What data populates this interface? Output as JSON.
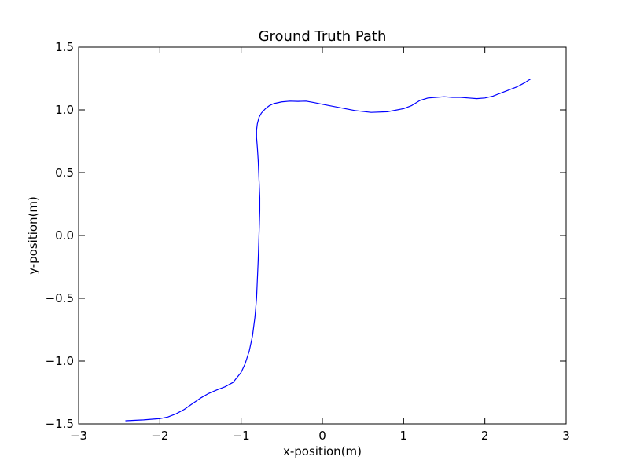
{
  "chart_data": {
    "type": "line",
    "title": "Ground Truth Path",
    "xlabel": "x-position(m)",
    "ylabel": "y-position(m)",
    "xlim": [
      -3,
      3
    ],
    "ylim": [
      -1.5,
      1.5
    ],
    "xticks": [
      -3,
      -2,
      -1,
      0,
      1,
      2,
      3
    ],
    "xtick_labels": [
      "−3",
      "−2",
      "−1",
      "0",
      "1",
      "2",
      "3"
    ],
    "yticks": [
      -1.5,
      -1.0,
      -0.5,
      0.0,
      0.5,
      1.0,
      1.5
    ],
    "ytick_labels": [
      "−1.5",
      "−1.0",
      "−0.5",
      "0.0",
      "0.5",
      "1.0",
      "1.5"
    ],
    "grid": false,
    "line_color": "#0000ff",
    "series": [
      {
        "x": [
          -2.42,
          -2.2,
          -2.0,
          -1.9,
          -1.8,
          -1.7,
          -1.6,
          -1.5,
          -1.4,
          -1.3,
          -1.2,
          -1.1,
          -1.0,
          -0.95,
          -0.9,
          -0.86,
          -0.83,
          -0.81,
          -0.8,
          -0.79,
          -0.785,
          -0.78,
          -0.775,
          -0.77,
          -0.77,
          -0.78,
          -0.79,
          -0.8,
          -0.81,
          -0.81,
          -0.8,
          -0.78,
          -0.75,
          -0.7,
          -0.65,
          -0.6,
          -0.5,
          -0.4,
          -0.3,
          -0.2,
          -0.1,
          0.0,
          0.2,
          0.4,
          0.6,
          0.8,
          1.0,
          1.1,
          1.2,
          1.3,
          1.4,
          1.5,
          1.6,
          1.7,
          1.8,
          1.9,
          2.0,
          2.1,
          2.2,
          2.3,
          2.4,
          2.5,
          2.56
        ],
        "y": [
          -1.475,
          -1.468,
          -1.458,
          -1.445,
          -1.42,
          -1.385,
          -1.34,
          -1.295,
          -1.258,
          -1.23,
          -1.205,
          -1.17,
          -1.09,
          -1.02,
          -0.92,
          -0.8,
          -0.65,
          -0.5,
          -0.35,
          -0.2,
          -0.1,
          0.0,
          0.1,
          0.2,
          0.3,
          0.45,
          0.6,
          0.7,
          0.78,
          0.84,
          0.89,
          0.94,
          0.975,
          1.01,
          1.035,
          1.05,
          1.064,
          1.07,
          1.068,
          1.07,
          1.058,
          1.045,
          1.02,
          0.995,
          0.98,
          0.985,
          1.01,
          1.035,
          1.075,
          1.095,
          1.1,
          1.105,
          1.1,
          1.1,
          1.095,
          1.09,
          1.095,
          1.11,
          1.135,
          1.16,
          1.185,
          1.22,
          1.245
        ]
      }
    ]
  }
}
